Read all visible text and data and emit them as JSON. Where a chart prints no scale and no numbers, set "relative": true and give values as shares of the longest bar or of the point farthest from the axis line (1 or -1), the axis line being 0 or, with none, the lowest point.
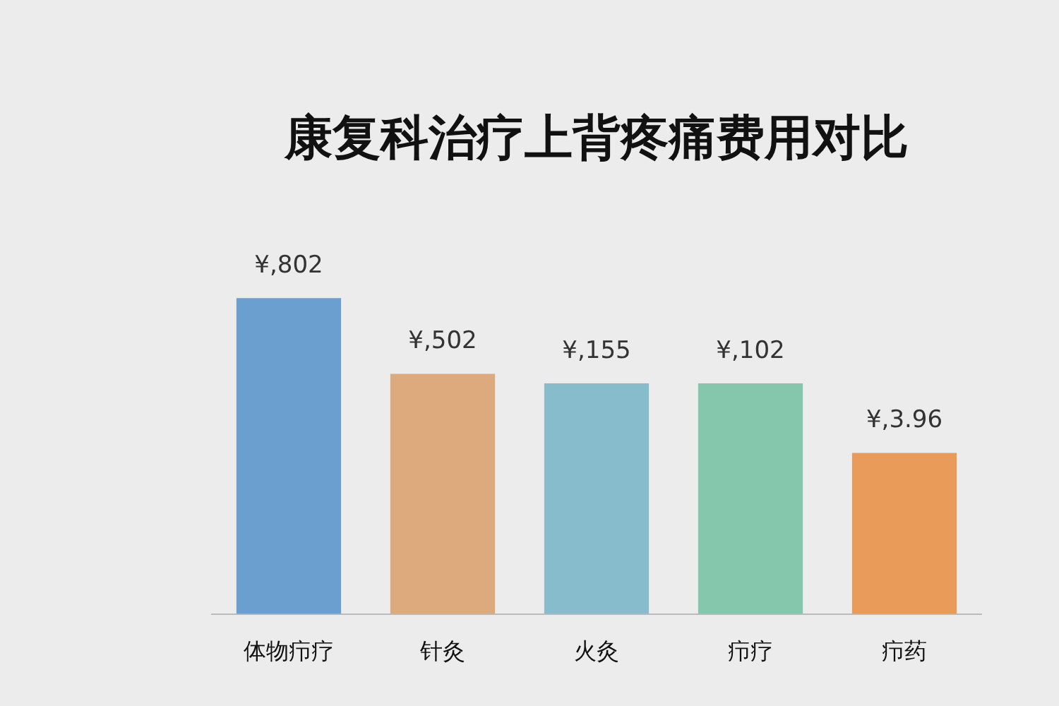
{
  "chart_data": {
    "type": "bar",
    "title": "康复科治疗上背疼痛费用对比",
    "categories": [
      "体物疖疗",
      "针灸",
      "火灸",
      "疖疗",
      "疖药"
    ],
    "values": [
      1,
      0.76,
      0.73,
      0.73,
      0.51
    ],
    "colors": [
      "#6a9fcf",
      "#dcaa7c",
      "#86bccb",
      "#84c7ac",
      "#e99c5a"
    ],
    "annotations": [
      "¥,802",
      "¥,502",
      "¥,155",
      "¥,102",
      "¥,3.96"
    ],
    "relative": true,
    "grid": false,
    "legend": false
  }
}
